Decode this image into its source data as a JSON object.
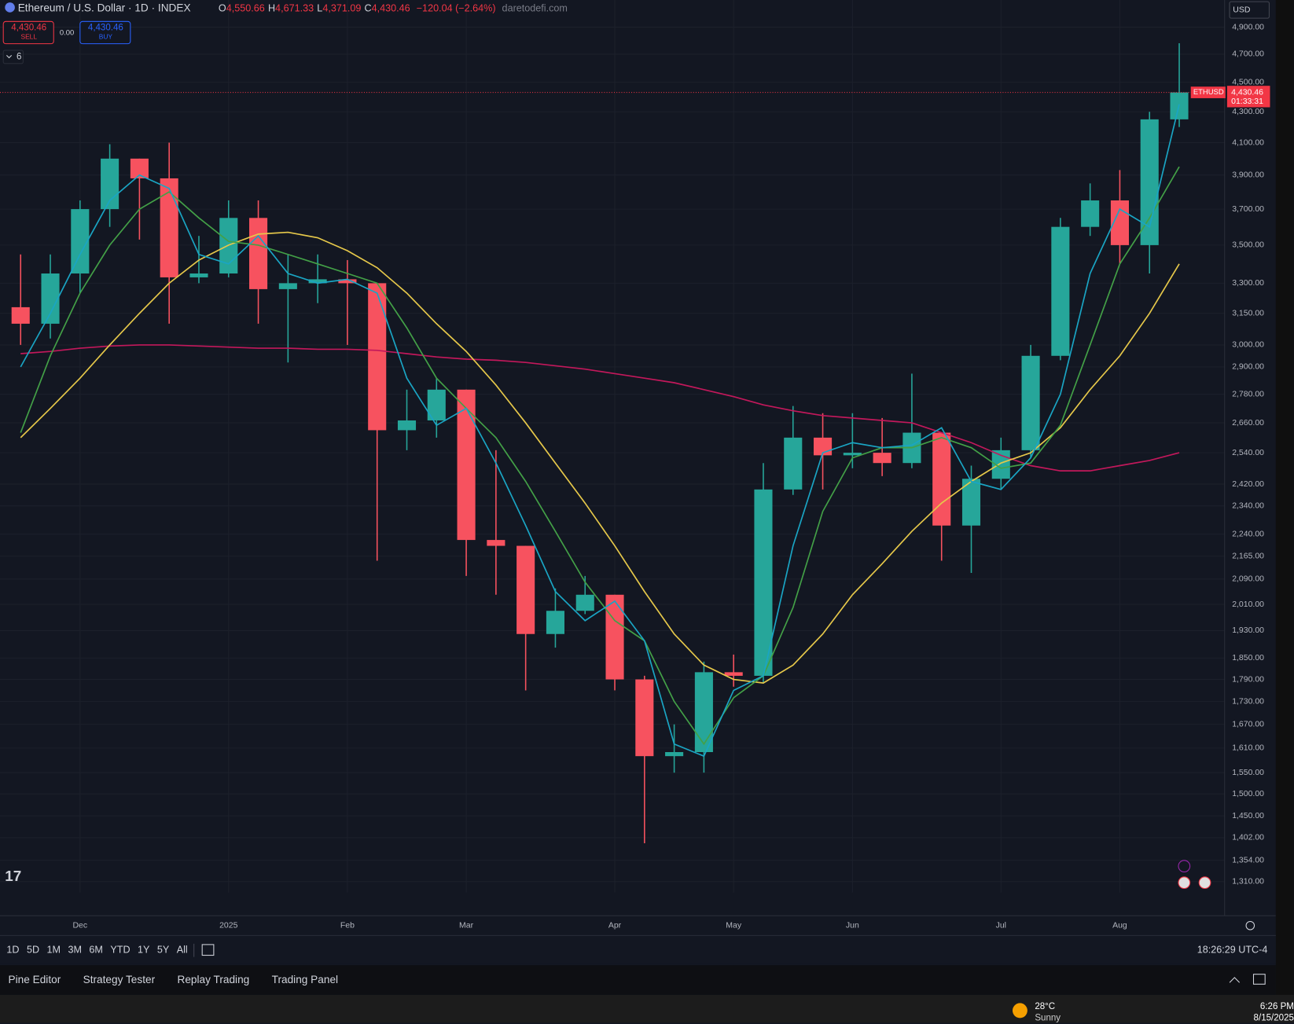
{
  "header": {
    "symbol": "Ethereum / U.S. Dollar · 1D · INDEX",
    "ohlc": [
      {
        "k": "O",
        "v": "4,550.66"
      },
      {
        "k": "H",
        "v": "4,671.33"
      },
      {
        "k": "L",
        "v": "4,371.09"
      },
      {
        "k": "C",
        "v": "4,430.46"
      }
    ],
    "change": "−120.04 (−2.64%)",
    "source": "daretodefi.com",
    "sell_price": "4,430.46",
    "sell": "SELL",
    "spread": "0.00",
    "buy_price": "4,430.46",
    "buy": "BUY",
    "indicators": "6",
    "currency": "USD",
    "symbol_tag": "ETHUSD",
    "countdown": "01:33:31"
  },
  "chart_data": {
    "type": "candlestick",
    "log_scale": true,
    "grid": true,
    "categories": [
      null,
      null,
      "Dec",
      null,
      null,
      null,
      null,
      "2025",
      null,
      null,
      null,
      "Feb",
      null,
      null,
      null,
      "Mar",
      null,
      null,
      null,
      null,
      "Apr",
      null,
      null,
      null,
      "May",
      null,
      null,
      null,
      "Jun",
      null,
      null,
      null,
      null,
      "Jul",
      null,
      null,
      null,
      "Aug",
      null,
      null
    ],
    "open": [
      3180,
      3100,
      3350,
      3700,
      4000,
      3880,
      3330,
      3350,
      3650,
      3270,
      3300,
      3320,
      3300,
      2630,
      2670,
      2800,
      2220,
      2200,
      1920,
      1990,
      2040,
      1790,
      1590,
      1600,
      1810,
      1800,
      2400,
      2600,
      2530,
      2540,
      2500,
      2620,
      2270,
      2440,
      2550,
      2950,
      3600,
      3750,
      3500,
      4250
    ],
    "high": [
      3450,
      3450,
      3750,
      4090,
      4000,
      4100,
      3550,
      3750,
      3750,
      3450,
      3450,
      3420,
      3300,
      2800,
      2850,
      2800,
      2550,
      2200,
      2060,
      2100,
      2040,
      1800,
      1670,
      1840,
      1860,
      2500,
      2730,
      2700,
      2700,
      2680,
      2870,
      2620,
      2490,
      2600,
      3000,
      3650,
      3850,
      3930,
      4300,
      4780
    ],
    "low": [
      3000,
      3030,
      3250,
      3600,
      3530,
      3100,
      3300,
      3330,
      3100,
      2920,
      3200,
      3000,
      2150,
      2550,
      2600,
      2100,
      2040,
      1760,
      1880,
      1980,
      1760,
      1390,
      1550,
      1550,
      1770,
      1780,
      2380,
      2400,
      2480,
      2450,
      2480,
      2150,
      2110,
      2400,
      2520,
      2930,
      3550,
      3400,
      3350,
      4200
    ],
    "close": [
      3100,
      3350,
      3700,
      4000,
      3880,
      3330,
      3350,
      3650,
      3270,
      3300,
      3320,
      3300,
      2630,
      2670,
      2800,
      2220,
      2200,
      1920,
      1990,
      2040,
      1790,
      1590,
      1600,
      1810,
      1800,
      2400,
      2600,
      2530,
      2540,
      2500,
      2620,
      2270,
      2440,
      2550,
      2950,
      3600,
      3750,
      3500,
      4250,
      4430.46
    ],
    "up_color": "#26a69a",
    "down_color": "#f7525f",
    "lines": [
      {
        "color": "#c2185b",
        "values": [
          2960,
          2970,
          2985,
          2995,
          3000,
          3000,
          2995,
          2990,
          2985,
          2985,
          2980,
          2980,
          2975,
          2960,
          2945,
          2935,
          2930,
          2920,
          2905,
          2890,
          2870,
          2850,
          2830,
          2800,
          2770,
          2735,
          2710,
          2690,
          2680,
          2670,
          2660,
          2620,
          2580,
          2530,
          2490,
          2470,
          2470,
          2490,
          2510,
          2540
        ]
      },
      {
        "color": "#e6c84a",
        "values": [
          2600,
          2720,
          2850,
          3000,
          3150,
          3300,
          3420,
          3500,
          3560,
          3570,
          3540,
          3470,
          3380,
          3250,
          3100,
          2970,
          2820,
          2660,
          2500,
          2350,
          2200,
          2050,
          1920,
          1830,
          1790,
          1780,
          1830,
          1920,
          2040,
          2140,
          2250,
          2350,
          2430,
          2500,
          2540,
          2640,
          2800,
          2950,
          3150,
          3400
        ]
      },
      {
        "color": "#43a047",
        "values": [
          2620,
          2950,
          3250,
          3500,
          3700,
          3800,
          3650,
          3520,
          3500,
          3450,
          3400,
          3350,
          3300,
          3080,
          2850,
          2720,
          2600,
          2430,
          2250,
          2080,
          1960,
          1900,
          1730,
          1620,
          1740,
          1800,
          2000,
          2320,
          2520,
          2560,
          2560,
          2600,
          2560,
          2480,
          2500,
          2650,
          3000,
          3400,
          3650,
          3950
        ]
      },
      {
        "color": "#1aa5c4",
        "values": [
          2900,
          3150,
          3450,
          3750,
          3900,
          3820,
          3450,
          3400,
          3550,
          3350,
          3300,
          3320,
          3250,
          2850,
          2650,
          2720,
          2500,
          2270,
          2050,
          1960,
          2020,
          1900,
          1620,
          1590,
          1760,
          1800,
          2200,
          2540,
          2580,
          2560,
          2570,
          2640,
          2430,
          2400,
          2520,
          2780,
          3350,
          3700,
          3600,
          4350
        ]
      }
    ],
    "last_price": 4430.46,
    "last_price_label": "4,430.46",
    "ylim": [
      1288,
      5110
    ],
    "yticks": [
      {
        "value": 4900,
        "label": "4,900.00"
      },
      {
        "value": 4700,
        "label": "4,700.00"
      },
      {
        "value": 4500,
        "label": "4,500.00"
      },
      {
        "value": 4300,
        "label": "4,300.00"
      },
      {
        "value": 4100,
        "label": "4,100.00"
      },
      {
        "value": 3900,
        "label": "3,900.00"
      },
      {
        "value": 3700,
        "label": "3,700.00"
      },
      {
        "value": 3500,
        "label": "3,500.00"
      },
      {
        "value": 3300,
        "label": "3,300.00"
      },
      {
        "value": 3150,
        "label": "3,150.00"
      },
      {
        "value": 3000,
        "label": "3,000.00"
      },
      {
        "value": 2900,
        "label": "2,900.00"
      },
      {
        "value": 2780,
        "label": "2,780.00"
      },
      {
        "value": 2660,
        "label": "2,660.00"
      },
      {
        "value": 2540,
        "label": "2,540.00"
      },
      {
        "value": 2420,
        "label": "2,420.00"
      },
      {
        "value": 2340,
        "label": "2,340.00"
      },
      {
        "value": 2240,
        "label": "2,240.00"
      },
      {
        "value": 2165,
        "label": "2,165.00"
      },
      {
        "value": 2090,
        "label": "2,090.00"
      },
      {
        "value": 2010,
        "label": "2,010.00"
      },
      {
        "value": 1930,
        "label": "1,930.00"
      },
      {
        "value": 1850,
        "label": "1,850.00"
      },
      {
        "value": 1790,
        "label": "1,790.00"
      },
      {
        "value": 1730,
        "label": "1,730.00"
      },
      {
        "value": 1670,
        "label": "1,670.00"
      },
      {
        "value": 1610,
        "label": "1,610.00"
      },
      {
        "value": 1550,
        "label": "1,550.00"
      },
      {
        "value": 1500,
        "label": "1,500.00"
      },
      {
        "value": 1450,
        "label": "1,450.00"
      },
      {
        "value": 1402,
        "label": "1,402.00"
      },
      {
        "value": 1354,
        "label": "1,354.00"
      },
      {
        "value": 1310,
        "label": "1,310.00"
      }
    ]
  },
  "toolbar": {
    "ranges": [
      "1D",
      "5D",
      "1M",
      "3M",
      "6M",
      "YTD",
      "1Y",
      "5Y",
      "All"
    ],
    "clock": "18:26:29 UTC-4"
  },
  "panels": [
    "Pine Editor",
    "Strategy Tester",
    "Replay Trading",
    "Trading Panel"
  ],
  "taskbar": {
    "temp": "28°C",
    "weather": "Sunny",
    "time": "6:26 PM",
    "date": "8/15/2025"
  }
}
